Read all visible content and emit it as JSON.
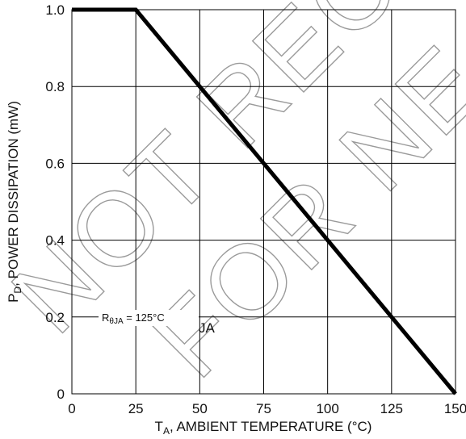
{
  "chart_data": {
    "type": "line",
    "x": [
      0,
      25,
      150
    ],
    "series": [
      {
        "values": [
          1.0,
          1.0,
          0.0
        ],
        "color": "#000000"
      }
    ],
    "xlabel_main": "T",
    "xlabel_sub": "A",
    "xlabel_rest": ", AMBIENT TEMPERATURE (°C)",
    "ylabel_main": "P",
    "ylabel_sub": "D",
    "ylabel_rest": ", POWER DISSIPATION (mW)",
    "xticks": [
      0,
      25,
      50,
      75,
      100,
      125,
      150
    ],
    "xtick_labels": [
      "0",
      "25",
      "50",
      "75",
      "100",
      "125",
      "150"
    ],
    "yticks": [
      0,
      0.2,
      0.4,
      0.6,
      0.8,
      1.0
    ],
    "ytick_labels": [
      "0",
      "0.2",
      "0.4",
      "0.6",
      "0.8",
      "1.0"
    ],
    "xlim": [
      0,
      150
    ],
    "ylim": [
      0,
      1.0
    ],
    "grid": true,
    "annotations": {
      "rtheta_main": "R",
      "rtheta_sub": "θJA",
      "rtheta_rest": " = 125°C",
      "ja_label": "JA"
    },
    "watermark_line1": "NOT REC",
    "watermark_line2": "FOR NE"
  }
}
